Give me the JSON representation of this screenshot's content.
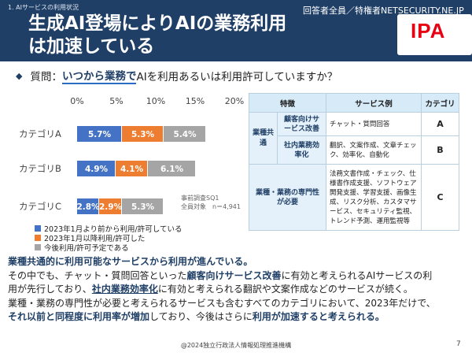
{
  "header": {
    "section_label": "1. AIサービスの利用状況",
    "title": "生成AI登場によりAIの業務利用は加速している",
    "watermark": "回答者全員／特権者NETSECURITY.NE.JP",
    "logo_text": "IPA"
  },
  "question": {
    "bullet": "◆",
    "prefix": "質問：",
    "emphasis": "いつから業務で",
    "suffix": "AIを利用あるいは利用許可していますか？"
  },
  "chart_data": {
    "type": "bar",
    "orientation": "horizontal",
    "stacked": true,
    "categories": [
      "カテゴリA",
      "カテゴリB",
      "カテゴリC"
    ],
    "series": [
      {
        "name": "2023年1月より前から利用/許可している",
        "values": [
          5.7,
          4.9,
          2.8
        ],
        "labels": [
          "5.7%",
          "4.9%",
          "2.8%"
        ],
        "color": "#4472c4"
      },
      {
        "name": "2023年1月以降利用/許可した",
        "values": [
          5.3,
          4.1,
          2.9
        ],
        "labels": [
          "5.3%",
          "4.1%",
          "2.9%"
        ],
        "color": "#ed7d31"
      },
      {
        "name": "今後利用/許可予定である",
        "values": [
          5.4,
          6.1,
          5.3
        ],
        "labels": [
          "5.4%",
          "6.1%",
          "5.3%"
        ],
        "color": "#a5a5a5"
      }
    ],
    "xlim": [
      0,
      20
    ],
    "x_ticks": [
      "0%",
      "5%",
      "10%",
      "15%",
      "20%"
    ],
    "x_tick_values": [
      0,
      5,
      10,
      15,
      20
    ],
    "legend_position": "bottom-left",
    "grid": false
  },
  "survey_note": {
    "line1": "事前調査SQ1",
    "line2": "全員対象　n＝4,941"
  },
  "table": {
    "headers": [
      "特徴",
      "サービス例",
      "カテゴリ"
    ],
    "group_label": "業種共通",
    "rows": [
      {
        "feature": "顧客向けサービス改善",
        "example": "チャット・質問回答",
        "category": "A"
      },
      {
        "feature": "社内業務効率化",
        "example": "翻訳、文案作成、文章チェック、効率化、自動化",
        "category": "B"
      },
      {
        "feature": "業種・業務の専門性が必要",
        "example": "法務文書作成・チェック、仕様書作成支援、ソフトウェア開発支援、学習支援、画像生成、リスク分析、カスタマサービス、セキュリティ監視、トレンド予測、運用監視等",
        "category": "C"
      }
    ]
  },
  "summary": {
    "line1": "業種共通的に利用可能なサービスから利用が進んでいる。",
    "line2_a": "その中でも、チャット・質問回答といった",
    "line2_b": "顧客向けサービス改善",
    "line2_c": "に有効と考えられるAIサービスの利",
    "line3_a": "用が先行しており、",
    "line3_b": "社内業務効率化",
    "line3_c": "に有効と考えられる翻訳や文案作成などのサービスが続く。",
    "line4": "業種・業務の専門性が必要と考えられるサービスも含むすべてのカテゴリにおいて、2023年だけで、",
    "line5_a": "それ以前と同程度に利用率が増加",
    "line5_b": "しており、今後はさらに",
    "line5_c": "利用が加速すると考えられる。"
  },
  "footer": {
    "copyright": "@2024独立行政法人情報処理推進機構",
    "page_number": "7"
  }
}
